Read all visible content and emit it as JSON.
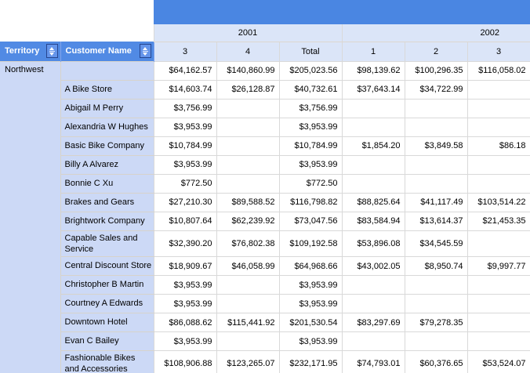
{
  "colors": {
    "top_band": "#4a86e2",
    "header_blue": "#518ae4",
    "light_header_bg": "#dbe5f8",
    "row_label_bg": "#ccd9f6",
    "grid_line": "#d9d9d9"
  },
  "matrix": {
    "row_headers": [
      {
        "label": "Territory",
        "sort_icon": "sort-updown-icon"
      },
      {
        "label": "Customer Name",
        "sort_icon": "sort-updown-icon"
      }
    ],
    "year_groups": [
      {
        "label": "2001",
        "quarters": [
          "3",
          "4",
          "Total"
        ]
      },
      {
        "label": "2002",
        "quarters": [
          "1",
          "2",
          "3"
        ]
      }
    ],
    "column_labels": [
      "3",
      "4",
      "Total",
      "1",
      "2",
      "3"
    ],
    "territory": "Northwest",
    "rows": [
      {
        "customer": "",
        "values": [
          "$64,162.57",
          "$140,860.99",
          "$205,023.56",
          "$98,139.62",
          "$100,296.35",
          "$116,058.02"
        ]
      },
      {
        "customer": "A Bike Store",
        "values": [
          "$14,603.74",
          "$26,128.87",
          "$40,732.61",
          "$37,643.14",
          "$34,722.99",
          ""
        ]
      },
      {
        "customer": "Abigail M Perry",
        "values": [
          "$3,756.99",
          "",
          "$3,756.99",
          "",
          "",
          ""
        ]
      },
      {
        "customer": "Alexandria W Hughes",
        "values": [
          "$3,953.99",
          "",
          "$3,953.99",
          "",
          "",
          ""
        ]
      },
      {
        "customer": "Basic Bike Company",
        "values": [
          "$10,784.99",
          "",
          "$10,784.99",
          "$1,854.20",
          "$3,849.58",
          "$86.18"
        ]
      },
      {
        "customer": "Billy A Alvarez",
        "values": [
          "$3,953.99",
          "",
          "$3,953.99",
          "",
          "",
          ""
        ]
      },
      {
        "customer": "Bonnie C Xu",
        "values": [
          "$772.50",
          "",
          "$772.50",
          "",
          "",
          ""
        ]
      },
      {
        "customer": "Brakes and Gears",
        "values": [
          "$27,210.30",
          "$89,588.52",
          "$116,798.82",
          "$88,825.64",
          "$41,117.49",
          "$103,514.22"
        ]
      },
      {
        "customer": "Brightwork Company",
        "values": [
          "$10,807.64",
          "$62,239.92",
          "$73,047.56",
          "$83,584.94",
          "$13,614.37",
          "$21,453.35"
        ]
      },
      {
        "customer": "Capable Sales and Service",
        "values": [
          "$32,390.20",
          "$76,802.38",
          "$109,192.58",
          "$53,896.08",
          "$34,545.59",
          ""
        ]
      },
      {
        "customer": "Central Discount Store",
        "values": [
          "$18,909.67",
          "$46,058.99",
          "$64,968.66",
          "$43,002.05",
          "$8,950.74",
          "$9,997.77"
        ]
      },
      {
        "customer": "Christopher B Martin",
        "values": [
          "$3,953.99",
          "",
          "$3,953.99",
          "",
          "",
          ""
        ]
      },
      {
        "customer": "Courtney A Edwards",
        "values": [
          "$3,953.99",
          "",
          "$3,953.99",
          "",
          "",
          ""
        ]
      },
      {
        "customer": "Downtown Hotel",
        "values": [
          "$86,088.62",
          "$115,441.92",
          "$201,530.54",
          "$83,297.69",
          "$79,278.35",
          ""
        ]
      },
      {
        "customer": "Evan C Bailey",
        "values": [
          "$3,953.99",
          "",
          "$3,953.99",
          "",
          "",
          ""
        ]
      },
      {
        "customer": "Fashionable Bikes and Accessories",
        "values": [
          "$108,906.88",
          "$123,265.07",
          "$232,171.95",
          "$74,793.01",
          "$60,376.65",
          "$53,524.07"
        ]
      }
    ]
  }
}
